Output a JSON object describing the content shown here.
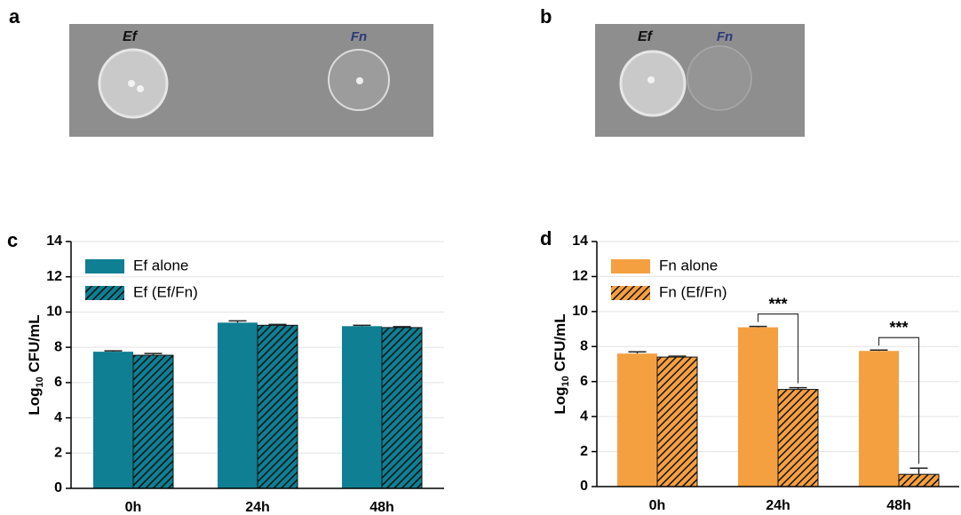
{
  "panel_labels": {
    "a": "a",
    "b": "b",
    "c": "c",
    "d": "d"
  },
  "photos": [
    {
      "labels": [
        "Ef",
        "Fn"
      ]
    },
    {
      "labels": [
        "Ef",
        "Fn"
      ]
    }
  ],
  "chart_data": [
    {
      "type": "bar",
      "ylabel": [
        "Log",
        "10",
        " CFU/mL"
      ],
      "categories": [
        "0h",
        "24h",
        "48h"
      ],
      "series": [
        {
          "name": "Ef alone",
          "color": "#0f7f93",
          "hatch": false,
          "values": [
            7.75,
            9.4,
            9.2
          ],
          "errors": [
            0.05,
            0.1,
            0.05
          ]
        },
        {
          "name": "Ef (Ef/Fn)",
          "color": "#0f7f93",
          "hatch": true,
          "values": [
            7.55,
            9.25,
            9.12
          ],
          "errors": [
            0.1,
            0.05,
            0.05
          ]
        }
      ],
      "ylim": [
        0,
        14
      ],
      "yticks": [
        0,
        2,
        4,
        6,
        8,
        10,
        12,
        14
      ],
      "grid": true,
      "legend": "upper-left",
      "annotations": []
    },
    {
      "type": "bar",
      "ylabel": [
        "Log",
        "10",
        " CFU/mL"
      ],
      "categories": [
        "0h",
        "24h",
        "48h"
      ],
      "series": [
        {
          "name": "Fn alone",
          "color": "#f5a040",
          "hatch": false,
          "values": [
            7.6,
            9.1,
            7.75
          ],
          "errors": [
            0.1,
            0.05,
            0.05
          ]
        },
        {
          "name": "Fn (Ef/Fn)",
          "color": "#f5a040",
          "hatch": true,
          "values": [
            7.4,
            5.55,
            0.7
          ],
          "errors": [
            0.05,
            0.1,
            0.35
          ]
        }
      ],
      "ylim": [
        0,
        14
      ],
      "yticks": [
        0,
        2,
        4,
        6,
        8,
        10,
        12,
        14
      ],
      "grid": true,
      "legend": "upper-left",
      "annotations": [
        {
          "text": "***",
          "x": "24h"
        },
        {
          "text": "***",
          "x": "48h"
        }
      ]
    }
  ]
}
